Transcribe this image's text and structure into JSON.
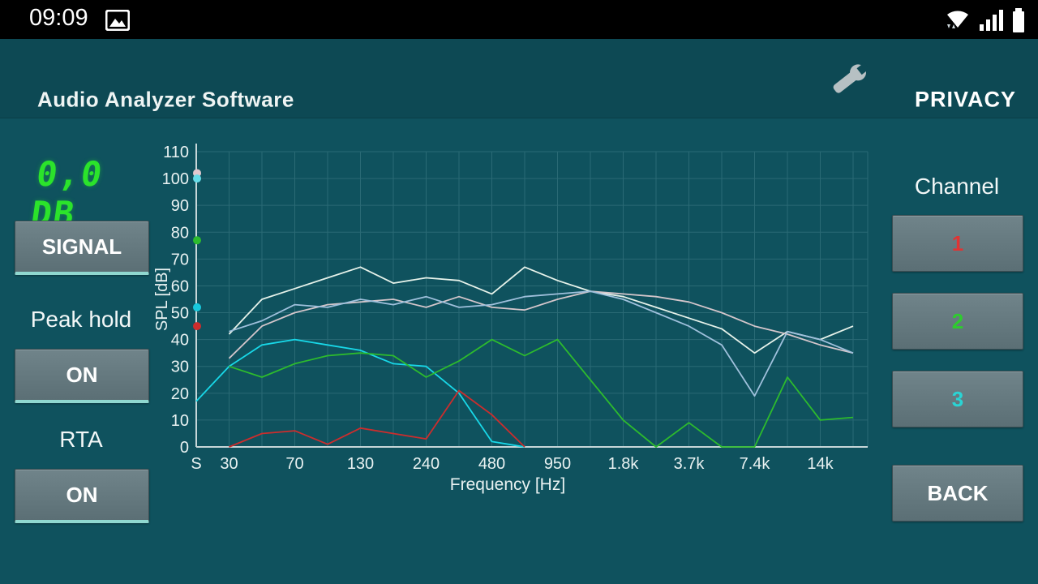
{
  "status_bar": {
    "time": "09:09"
  },
  "header": {
    "title": "Audio Analyzer Software",
    "privacy_label": "PRIVACY",
    "wrench_icon": "settings-wrench"
  },
  "left_panel": {
    "level_display": "0,0 DB",
    "signal_label": "SIGNAL",
    "peak_hold_label": "Peak hold",
    "peak_hold_state": "ON",
    "rta_label": "RTA",
    "rta_state": "ON"
  },
  "right_panel": {
    "channel_label": "Channel",
    "channels": [
      {
        "label": "1",
        "color": "#e03434"
      },
      {
        "label": "2",
        "color": "#2ecc2e"
      },
      {
        "label": "3",
        "color": "#2ad4d4"
      }
    ],
    "back_label": "BACK"
  },
  "colors": {
    "background": "#0f525e",
    "header": "#0d4954",
    "accent_underline": "#8fd8d0",
    "level_green": "#2be32b",
    "grid": "#2a6a75",
    "axis": "#c6d6d8",
    "axis_text": "#e9f2f2"
  },
  "chart_data": {
    "type": "line",
    "title": "",
    "xlabel": "Frequency [Hz]",
    "ylabel": "SPL [dB]",
    "ylim": [
      0,
      110
    ],
    "grid": true,
    "legend": "none",
    "grid_color": "#2a6a75",
    "axis_color": "#c6d6d8",
    "text_color": "#e9f2f2",
    "y_ticks": [
      0,
      10,
      20,
      30,
      40,
      50,
      60,
      70,
      80,
      90,
      100,
      110
    ],
    "x_tick_labels": [
      "S",
      "30",
      "70",
      "130",
      "240",
      "480",
      "950",
      "1.8k",
      "3.7k",
      "7.4k",
      "14k"
    ],
    "x_tick_indices": [
      0,
      1,
      3,
      5,
      7,
      9,
      11,
      13,
      15,
      17,
      19
    ],
    "n_points": 21,
    "series": [
      {
        "name": "peak-hold-white",
        "color": "#e6f2ea",
        "values": [
          null,
          42,
          55,
          59,
          63,
          67,
          61,
          63,
          62,
          57,
          67,
          62,
          58,
          56,
          52,
          48,
          44,
          35,
          43,
          40,
          45
        ]
      },
      {
        "name": "peak-hold-silver",
        "color": "#d4c6cb",
        "values": [
          null,
          33,
          45,
          50,
          53,
          54,
          55,
          52,
          56,
          52,
          51,
          55,
          58,
          57,
          56,
          54,
          50,
          45,
          42,
          38,
          35
        ]
      },
      {
        "name": "channel-lightblue",
        "color": "#9fc0dc",
        "values": [
          null,
          43,
          47,
          53,
          52,
          55,
          53,
          56,
          52,
          53,
          56,
          57,
          58,
          55,
          50,
          45,
          38,
          19,
          43,
          40,
          35
        ]
      },
      {
        "name": "channel-cyan",
        "color": "#18d8e8",
        "values": [
          17,
          30,
          38,
          40,
          38,
          36,
          31,
          30,
          20,
          2,
          0,
          null,
          null,
          null,
          null,
          null,
          null,
          null,
          null,
          null,
          null
        ]
      },
      {
        "name": "channel-green",
        "color": "#2dbb2d",
        "values": [
          null,
          30,
          26,
          31,
          34,
          35,
          34,
          26,
          32,
          40,
          34,
          40,
          25,
          10,
          0,
          9,
          0,
          0,
          26,
          10,
          11
        ]
      },
      {
        "name": "channel-red",
        "color": "#cc2d2d",
        "values": [
          null,
          0,
          5,
          6,
          1,
          7,
          5,
          3,
          21,
          12,
          0,
          null,
          null,
          null,
          null,
          null,
          null,
          null,
          null,
          null,
          null
        ]
      }
    ],
    "axis_markers": [
      {
        "color": "#e3c9cf",
        "db": 102
      },
      {
        "color": "#66dce8",
        "db": 100
      },
      {
        "color": "#2dbb2d",
        "db": 77
      },
      {
        "color": "#18c8dc",
        "db": 52
      },
      {
        "color": "#cc2d2d",
        "db": 45
      }
    ]
  }
}
